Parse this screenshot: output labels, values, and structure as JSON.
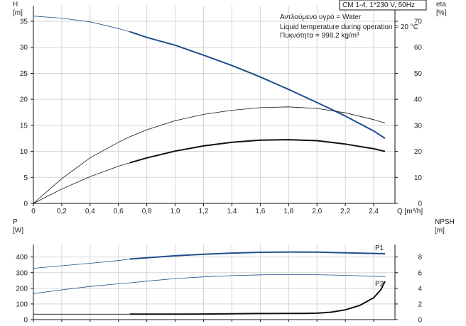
{
  "info_box": {
    "title": "CM 1-4, 1*230 V, 50Hz",
    "lines": [
      "Αντλούμενο υγρό = Water",
      "Liquid temperature during operation = 20 °C",
      "Πυκνότητα = 998.2 kg/m³"
    ]
  },
  "chart_data": [
    {
      "type": "line",
      "panel": "top",
      "xlabel": "Q [m³/h]",
      "ylabel_left": "H\n[m]",
      "ylabel_right": "eta\n[%]",
      "xlim": [
        0,
        2.55
      ],
      "ylim_left": [
        0,
        38
      ],
      "ylim_right": [
        0,
        76
      ],
      "x_ticks": [
        "0",
        "0,2",
        "0,4",
        "0,6",
        "0,8",
        "1,0",
        "1,2",
        "1,4",
        "1,6",
        "1,8",
        "2,0",
        "2,2",
        "2,4"
      ],
      "x_tick_values": [
        0,
        0.2,
        0.4,
        0.6,
        0.8,
        1.0,
        1.2,
        1.4,
        1.6,
        1.8,
        2.0,
        2.2,
        2.4
      ],
      "y_left_ticks": [
        0,
        5,
        10,
        15,
        20,
        25,
        30,
        35
      ],
      "y_right_ticks": [
        0,
        10,
        20,
        30,
        40,
        50,
        60,
        70
      ],
      "grid": true,
      "series": [
        {
          "axis": "left",
          "color": "#1f4e8c",
          "x": [
            0,
            0.2,
            0.4,
            0.6,
            0.68,
            0.8,
            1.0,
            1.2,
            1.4,
            1.6,
            1.8,
            2.0,
            2.2,
            2.4,
            2.48
          ],
          "y": [
            36.0,
            35.6,
            34.9,
            33.6,
            33.0,
            31.9,
            30.4,
            28.5,
            26.5,
            24.3,
            21.9,
            19.4,
            16.8,
            13.9,
            12.5
          ],
          "solid_from": 0.68
        },
        {
          "axis": "right",
          "color": "#111111",
          "x": [
            0,
            0.2,
            0.4,
            0.6,
            0.68,
            0.8,
            1.0,
            1.2,
            1.4,
            1.6,
            1.8,
            2.0,
            2.2,
            2.4,
            2.48
          ],
          "y": [
            0,
            9.5,
            17.5,
            23.5,
            25.6,
            28.3,
            31.8,
            34.2,
            35.8,
            36.8,
            37.1,
            36.5,
            34.8,
            32.2,
            30.9
          ],
          "solid_from": 99
        },
        {
          "axis": "right",
          "color": "#111111",
          "x": [
            0,
            0.2,
            0.4,
            0.6,
            0.68,
            0.8,
            1.0,
            1.2,
            1.4,
            1.6,
            1.8,
            2.0,
            2.2,
            2.4,
            2.48
          ],
          "y": [
            0,
            5.5,
            10.3,
            14.3,
            15.6,
            17.5,
            20.1,
            22.1,
            23.5,
            24.3,
            24.5,
            24.1,
            22.8,
            21.0,
            20.0
          ],
          "solid_from": 0.68
        }
      ]
    },
    {
      "type": "line",
      "panel": "bottom",
      "ylabel_left": "P\n[W]",
      "ylabel_right": "NPSH\n[m]",
      "xlim": [
        0,
        2.55
      ],
      "ylim_left": [
        0,
        480
      ],
      "ylim_right": [
        0,
        9.6
      ],
      "y_left_ticks": [
        0,
        100,
        200,
        300,
        400
      ],
      "y_right_ticks": [
        0,
        2,
        4,
        6,
        8
      ],
      "grid": true,
      "series": [
        {
          "name": "P1",
          "axis": "left",
          "color": "#1f4e8c",
          "x": [
            0,
            0.2,
            0.4,
            0.6,
            0.68,
            0.8,
            1.0,
            1.2,
            1.4,
            1.6,
            1.8,
            2.0,
            2.2,
            2.4,
            2.48
          ],
          "y": [
            328,
            344,
            360,
            377,
            387,
            395,
            408,
            418,
            425,
            430,
            432,
            431,
            427,
            423,
            421
          ],
          "solid_from": 0.68
        },
        {
          "name": "P2",
          "axis": "left",
          "color": "#1f4e8c",
          "x": [
            0,
            0.2,
            0.4,
            0.6,
            0.68,
            0.8,
            1.0,
            1.2,
            1.4,
            1.6,
            1.8,
            2.0,
            2.2,
            2.4,
            2.48
          ],
          "y": [
            166,
            190,
            212,
            229,
            235,
            246,
            262,
            273,
            281,
            286,
            288,
            287,
            283,
            277,
            274
          ],
          "solid_from": 99
        },
        {
          "axis": "right",
          "color": "#111111",
          "x": [
            0,
            0.2,
            0.4,
            0.6,
            0.68,
            0.8,
            1.0,
            1.2,
            1.4,
            1.6,
            1.8,
            1.9,
            2.0,
            2.1,
            2.2,
            2.3,
            2.4,
            2.45,
            2.48
          ],
          "y": [
            0.7,
            0.7,
            0.7,
            0.7,
            0.7,
            0.7,
            0.7,
            0.72,
            0.75,
            0.78,
            0.8,
            0.8,
            0.82,
            0.95,
            1.25,
            1.8,
            2.8,
            3.8,
            4.9
          ],
          "solid_from": 0.68
        }
      ]
    }
  ]
}
